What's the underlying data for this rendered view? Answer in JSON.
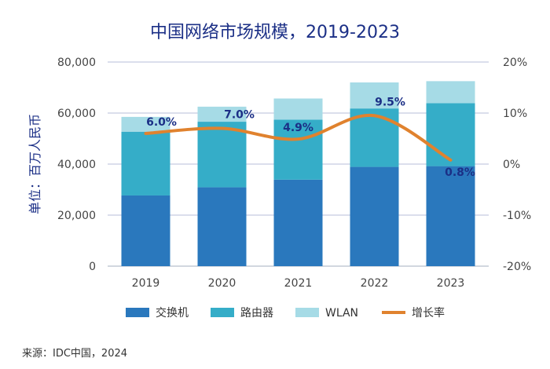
{
  "chart_data": {
    "type": "bar",
    "stacked": true,
    "title": "中国网络市场规模，2019-2023",
    "ylabel": "单位：百万人民币",
    "categories": [
      "2019",
      "2020",
      "2021",
      "2022",
      "2023"
    ],
    "ylim": [
      0,
      80000
    ],
    "yticks": [
      "0",
      "20,000",
      "40,000",
      "60,000",
      "80,000"
    ],
    "y2lim": [
      -20,
      20
    ],
    "y2ticks": [
      "-20%",
      "-10%",
      "0%",
      "10%",
      "20%"
    ],
    "grid": true,
    "legend_position": "bottom",
    "series": [
      {
        "name": "交换机",
        "type": "bar",
        "color": "#2a78bd",
        "values": [
          27700,
          30900,
          33900,
          38900,
          39200
        ]
      },
      {
        "name": "路由器",
        "type": "bar",
        "color": "#35adc8",
        "values": [
          25000,
          25700,
          23500,
          22900,
          24700
        ]
      },
      {
        "name": "WLAN",
        "type": "bar",
        "color": "#a6dbe6",
        "values": [
          5800,
          5900,
          8300,
          10200,
          8600
        ]
      },
      {
        "name": "增长率",
        "type": "line",
        "axis": "right",
        "color": "#e0822e",
        "values": [
          6.0,
          7.0,
          4.9,
          9.5,
          0.8
        ],
        "labels": [
          "6.0%",
          "7.0%",
          "4.9%",
          "9.5%",
          "0.8%"
        ]
      }
    ],
    "source": "来源：IDC中国，2024"
  }
}
